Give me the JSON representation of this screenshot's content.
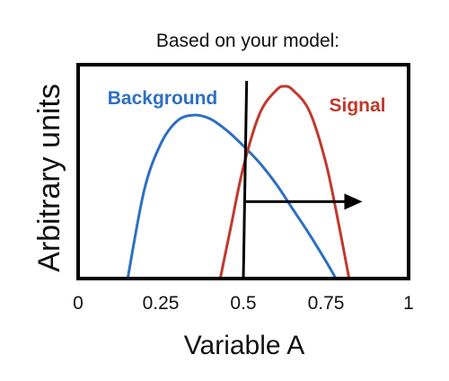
{
  "chart_data": {
    "type": "line",
    "title": "Based on your model:",
    "xlabel": "Variable A",
    "ylabel": "Arbitrary units",
    "xlim": [
      0,
      1
    ],
    "ylim": [
      0,
      1
    ],
    "x_ticks": [
      {
        "value": 0,
        "label": "0"
      },
      {
        "value": 0.25,
        "label": "0.25"
      },
      {
        "value": 0.5,
        "label": "0.5"
      },
      {
        "value": 0.75,
        "label": "0.75"
      },
      {
        "value": 1,
        "label": "1"
      }
    ],
    "grid": false,
    "series": [
      {
        "name": "Background",
        "color": "#2e6fc2",
        "x": [
          0.15,
          0.2,
          0.25,
          0.3,
          0.35,
          0.4,
          0.45,
          0.5,
          0.55,
          0.6,
          0.65,
          0.7,
          0.75,
          0.78
        ],
        "values": [
          0.0,
          0.46,
          0.7,
          0.82,
          0.85,
          0.83,
          0.77,
          0.69,
          0.6,
          0.49,
          0.36,
          0.23,
          0.09,
          0.0
        ]
      },
      {
        "name": "Signal",
        "color": "#c0392b",
        "x": [
          0.43,
          0.46,
          0.5,
          0.55,
          0.6,
          0.625,
          0.65,
          0.7,
          0.75,
          0.79,
          0.82
        ],
        "values": [
          0.0,
          0.25,
          0.58,
          0.86,
          0.98,
          1.0,
          0.98,
          0.87,
          0.6,
          0.27,
          0.0
        ]
      }
    ],
    "annotations": {
      "cut_line": {
        "x_bottom": 0.5,
        "x_top": 0.51,
        "color": "#000000"
      },
      "arrow": {
        "x_start": 0.5,
        "x_end": 0.86,
        "y": 0.4,
        "color": "#000000"
      }
    }
  }
}
